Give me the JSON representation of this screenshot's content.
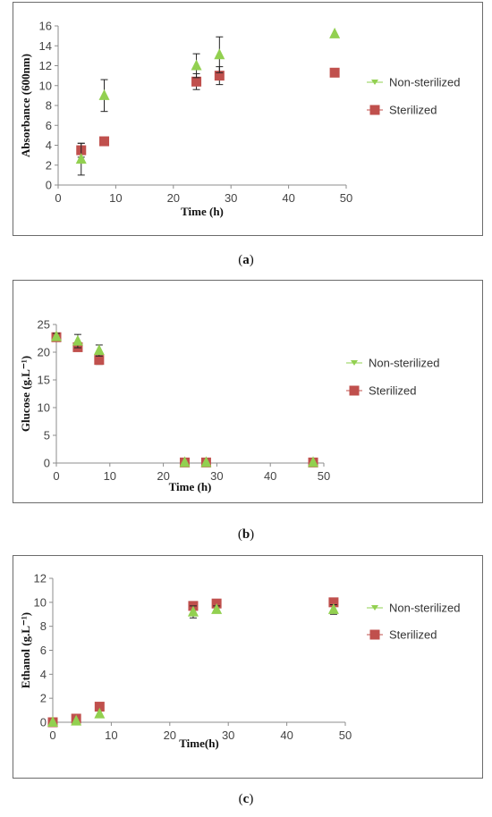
{
  "chart_data": [
    {
      "type": "scatter",
      "panel": "(a)",
      "xlabel": "Time (h)",
      "ylabel": "Absorbance (600nm)",
      "xlim": [
        0,
        50
      ],
      "ylim": [
        0,
        16
      ],
      "xticks": [
        0,
        10,
        20,
        30,
        40,
        50
      ],
      "yticks": [
        0,
        2,
        4,
        6,
        8,
        10,
        12,
        14,
        16
      ],
      "grid": false,
      "legend_position": "right",
      "series": [
        {
          "name": "Non-sterilized",
          "marker": "triangle",
          "color": "#92d050",
          "x": [
            4,
            8,
            24,
            28,
            48
          ],
          "y": [
            2.6,
            9.0,
            12.0,
            13.1,
            15.2
          ],
          "error": [
            1.6,
            1.6,
            1.2,
            1.8,
            0
          ]
        },
        {
          "name": "Sterilized",
          "marker": "square",
          "color": "#c0504d",
          "x": [
            4,
            8,
            24,
            28,
            48
          ],
          "y": [
            3.5,
            4.4,
            10.4,
            11.0,
            11.3
          ],
          "error": [
            0.7,
            0,
            0.8,
            0.9,
            0
          ]
        }
      ]
    },
    {
      "type": "scatter",
      "panel": "(b)",
      "xlabel": "Time (h)",
      "ylabel": "Glucose (g.L⁻¹)",
      "xlim": [
        0,
        50
      ],
      "ylim": [
        0,
        25
      ],
      "xticks": [
        0,
        10,
        20,
        30,
        40,
        50
      ],
      "yticks": [
        0,
        5,
        10,
        15,
        20,
        25
      ],
      "grid": false,
      "legend_position": "right",
      "series": [
        {
          "name": "Non-sterilized",
          "marker": "triangle",
          "color": "#92d050",
          "x": [
            0,
            4,
            8,
            24,
            28,
            48
          ],
          "y": [
            22.8,
            22.0,
            20.3,
            0.1,
            0.1,
            0.1
          ],
          "error": [
            0.6,
            1.2,
            1.0,
            0,
            0,
            0
          ]
        },
        {
          "name": "Sterilized",
          "marker": "square",
          "color": "#c0504d",
          "x": [
            0,
            4,
            8,
            24,
            28,
            48
          ],
          "y": [
            22.7,
            20.9,
            18.6,
            0.1,
            0.1,
            0.1
          ],
          "error": [
            0.5,
            0.5,
            0.8,
            0,
            0,
            0
          ]
        }
      ]
    },
    {
      "type": "scatter",
      "panel": "(c)",
      "xlabel": "Time(h)",
      "ylabel": "Ethanol (g.L⁻¹)",
      "xlim": [
        0,
        50
      ],
      "ylim": [
        0,
        12
      ],
      "xticks": [
        0,
        10,
        20,
        30,
        40,
        50
      ],
      "yticks": [
        0,
        2,
        4,
        6,
        8,
        10,
        12
      ],
      "grid": false,
      "legend_position": "right",
      "series": [
        {
          "name": "Non-sterilized",
          "marker": "triangle",
          "color": "#92d050",
          "x": [
            0,
            4,
            8,
            24,
            28,
            48
          ],
          "y": [
            0.0,
            0.1,
            0.7,
            9.2,
            9.4,
            9.4
          ],
          "error": [
            0,
            0,
            0,
            0.5,
            0.3,
            0.4
          ]
        },
        {
          "name": "Sterilized",
          "marker": "square",
          "color": "#c0504d",
          "x": [
            0,
            4,
            8,
            24,
            28,
            48
          ],
          "y": [
            0.0,
            0.3,
            1.3,
            9.7,
            9.9,
            10.0
          ],
          "error": [
            0,
            0,
            0,
            0.2,
            0.2,
            0.2
          ]
        }
      ]
    }
  ],
  "captions": {
    "a": "a",
    "b": "b",
    "c": "c"
  }
}
